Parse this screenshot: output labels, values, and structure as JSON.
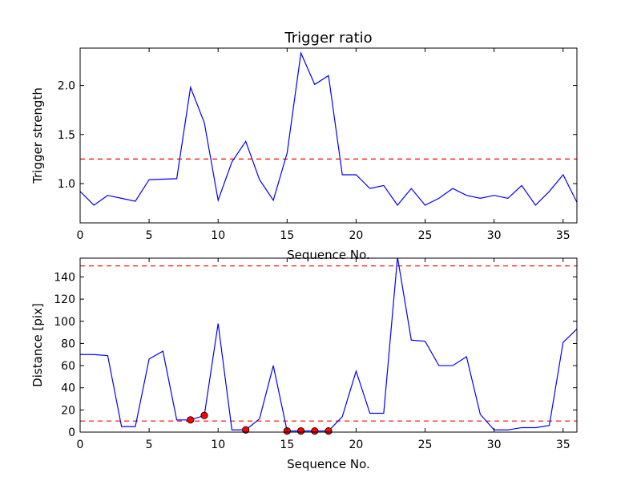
{
  "figure": {
    "title": "Trigger ratio"
  },
  "colors": {
    "line": "#0000ff",
    "threshold": "#ff0000",
    "marker": "#ff0000",
    "axes": "#000000"
  },
  "chart_data": [
    {
      "type": "line",
      "title": "Trigger ratio",
      "xlabel": "Sequence No.",
      "ylabel": "Trigger strength",
      "xlim": [
        0,
        36
      ],
      "ylim": [
        0.6,
        2.38
      ],
      "xticks": [
        0,
        5,
        10,
        15,
        20,
        25,
        30,
        35
      ],
      "yticks": [
        1.0,
        1.5,
        2.0
      ],
      "ytick_labels": [
        "1.0",
        "1.5",
        "2.0"
      ],
      "grid": false,
      "thresholds": [
        1.25
      ],
      "series": [
        {
          "x": [
            0,
            1,
            2,
            3,
            4,
            5,
            6,
            7,
            8,
            9,
            10,
            11,
            12,
            13,
            14,
            15,
            16,
            17,
            18,
            19,
            20,
            21,
            22,
            23,
            24,
            25,
            26,
            27,
            28,
            29,
            30,
            31,
            32,
            33,
            34,
            35,
            36
          ],
          "y": [
            0.92,
            0.78,
            0.88,
            0.85,
            0.82,
            1.04,
            1.045,
            1.05,
            1.98,
            1.62,
            0.83,
            1.22,
            1.43,
            1.04,
            0.83,
            1.31,
            2.33,
            2.01,
            2.1,
            1.09,
            1.09,
            0.95,
            0.98,
            0.78,
            0.95,
            0.78,
            0.85,
            0.95,
            0.88,
            0.85,
            0.88,
            0.85,
            0.98,
            0.78,
            0.92,
            1.09,
            0.81
          ]
        }
      ]
    },
    {
      "type": "line",
      "xlabel": "Sequence No.",
      "ylabel": "Distance [pix]",
      "xlim": [
        0,
        36
      ],
      "ylim": [
        0,
        157
      ],
      "xticks": [
        0,
        5,
        10,
        15,
        20,
        25,
        30,
        35
      ],
      "yticks": [
        0,
        20,
        40,
        60,
        80,
        100,
        120,
        140
      ],
      "grid": false,
      "thresholds": [
        10,
        150
      ],
      "series": [
        {
          "x": [
            0,
            1,
            2,
            3,
            4,
            5,
            6,
            7,
            8,
            9,
            10,
            11,
            12,
            13,
            14,
            15,
            16,
            17,
            18,
            19,
            20,
            21,
            22,
            23,
            24,
            25,
            26,
            27,
            28,
            29,
            30,
            31,
            32,
            33,
            34,
            35,
            36
          ],
          "y": [
            70,
            70,
            69,
            5,
            5,
            66,
            73,
            11,
            11,
            15,
            98,
            2,
            2,
            12,
            60,
            1,
            1,
            1,
            1,
            14,
            55,
            17,
            17,
            158,
            83,
            82,
            60,
            60,
            68,
            16,
            2,
            2,
            4,
            4,
            6,
            81,
            93
          ]
        }
      ],
      "markers": {
        "x": [
          8,
          9,
          12,
          15,
          16,
          17,
          18
        ],
        "y": [
          11,
          15,
          2,
          1,
          1,
          1,
          1
        ]
      }
    }
  ]
}
